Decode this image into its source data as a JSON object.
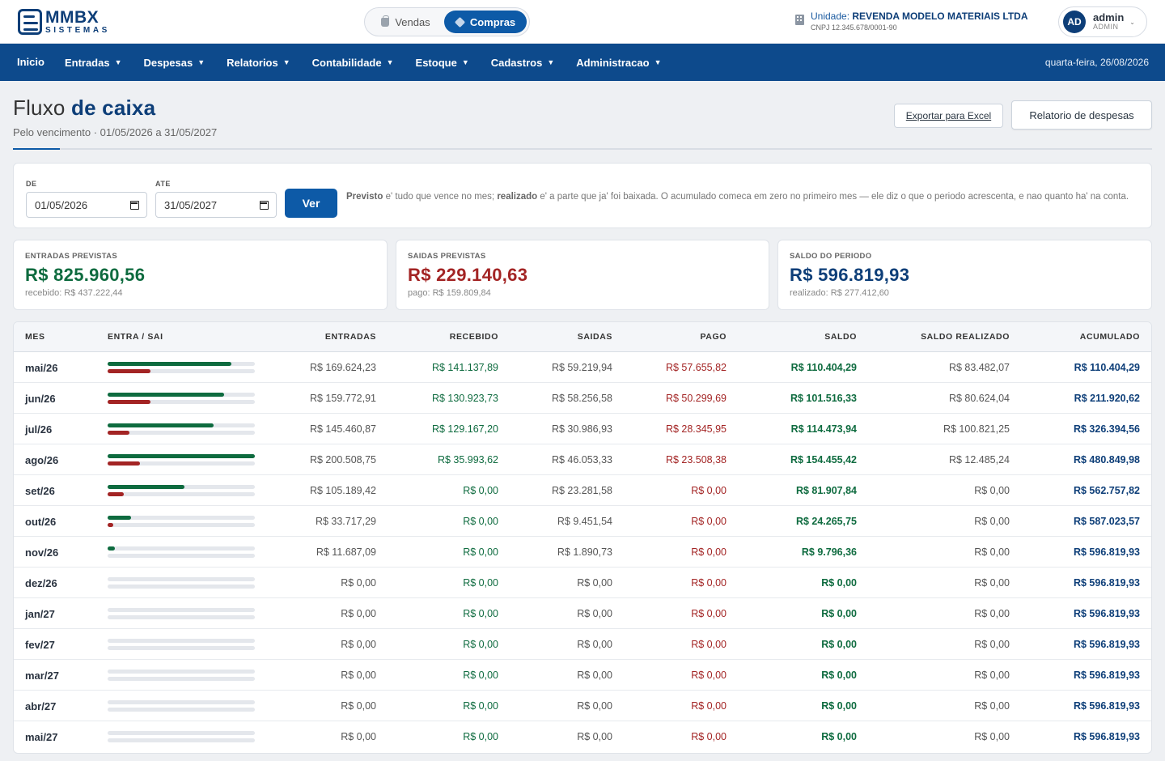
{
  "header": {
    "logo_name": "MMBX",
    "logo_sub": "SISTEMAS",
    "modules": [
      {
        "label": "Vendas",
        "active": false
      },
      {
        "label": "Compras",
        "active": true
      }
    ],
    "unit_label": "Unidade:",
    "unit_name": "REVENDA MODELO MATERIAIS LTDA",
    "unit_cnpj": "CNPJ 12.345.678/0001-90",
    "user_initials": "AD",
    "user_name": "admin",
    "user_role": "ADMIN"
  },
  "nav": {
    "items": [
      {
        "label": "Inicio",
        "dropdown": false
      },
      {
        "label": "Entradas",
        "dropdown": true
      },
      {
        "label": "Despesas",
        "dropdown": true
      },
      {
        "label": "Relatorios",
        "dropdown": true
      },
      {
        "label": "Contabilidade",
        "dropdown": true
      },
      {
        "label": "Estoque",
        "dropdown": true
      },
      {
        "label": "Cadastros",
        "dropdown": true
      },
      {
        "label": "Administracao",
        "dropdown": true
      }
    ],
    "date": "quarta-feira, 26/08/2026"
  },
  "page": {
    "title_light": "Fluxo",
    "title_strong": "de caixa",
    "subtitle": "Pelo vencimento · 01/05/2026 a 31/05/2027",
    "export_label": "Exportar para Excel",
    "report_label": "Relatorio de despesas"
  },
  "filter": {
    "from_label": "DE",
    "from_value": "01/05/2026",
    "to_label": "ATE",
    "to_value": "31/05/2027",
    "button_label": "Ver",
    "help_b1": "Previsto",
    "help_t1": " e' tudo que vence no mes; ",
    "help_b2": "realizado",
    "help_t2": " e' a parte que ja' foi baixada. O acumulado comeca em zero no primeiro mes — ele diz o que o periodo acrescenta, e nao quanto ha' na conta."
  },
  "cards": [
    {
      "label": "ENTRADAS PREVISTAS",
      "value": "R$ 825.960,56",
      "foot": "recebido: R$ 437.222,44",
      "color": "#0e6b3f"
    },
    {
      "label": "SAIDAS PREVISTAS",
      "value": "R$ 229.140,63",
      "foot": "pago: R$ 159.809,84",
      "color": "#a32424"
    },
    {
      "label": "SALDO DO PERIODO",
      "value": "R$ 596.819,93",
      "foot": "realizado: R$ 277.412,60",
      "color": "#0d3e78"
    }
  ],
  "table": {
    "columns": [
      "MES",
      "ENTRA / SAI",
      "ENTRADAS",
      "RECEBIDO",
      "SAIDAS",
      "PAGO",
      "SALDO",
      "SALDO REALIZADO",
      "ACUMULADO"
    ],
    "colors": {
      "in": "#0e6b3f",
      "out": "#a32424"
    },
    "rows": [
      {
        "mes": "mai/26",
        "in_frac": 0.84,
        "out_frac": 0.29,
        "entradas": "R$ 169.624,23",
        "recebido": "R$ 141.137,89",
        "saidas": "R$ 59.219,94",
        "pago": "R$ 57.655,82",
        "saldo": "R$ 110.404,29",
        "saldo_realizado": "R$ 83.482,07",
        "acumulado": "R$ 110.404,29"
      },
      {
        "mes": "jun/26",
        "in_frac": 0.79,
        "out_frac": 0.29,
        "entradas": "R$ 159.772,91",
        "recebido": "R$ 130.923,73",
        "saidas": "R$ 58.256,58",
        "pago": "R$ 50.299,69",
        "saldo": "R$ 101.516,33",
        "saldo_realizado": "R$ 80.624,04",
        "acumulado": "R$ 211.920,62"
      },
      {
        "mes": "jul/26",
        "in_frac": 0.72,
        "out_frac": 0.15,
        "entradas": "R$ 145.460,87",
        "recebido": "R$ 129.167,20",
        "saidas": "R$ 30.986,93",
        "pago": "R$ 28.345,95",
        "saldo": "R$ 114.473,94",
        "saldo_realizado": "R$ 100.821,25",
        "acumulado": "R$ 326.394,56"
      },
      {
        "mes": "ago/26",
        "in_frac": 1.0,
        "out_frac": 0.22,
        "entradas": "R$ 200.508,75",
        "recebido": "R$ 35.993,62",
        "saidas": "R$ 46.053,33",
        "pago": "R$ 23.508,38",
        "saldo": "R$ 154.455,42",
        "saldo_realizado": "R$ 12.485,24",
        "acumulado": "R$ 480.849,98"
      },
      {
        "mes": "set/26",
        "in_frac": 0.52,
        "out_frac": 0.11,
        "entradas": "R$ 105.189,42",
        "recebido": "R$ 0,00",
        "saidas": "R$ 23.281,58",
        "pago": "R$ 0,00",
        "saldo": "R$ 81.907,84",
        "saldo_realizado": "R$ 0,00",
        "acumulado": "R$ 562.757,82"
      },
      {
        "mes": "out/26",
        "in_frac": 0.16,
        "out_frac": 0.04,
        "entradas": "R$ 33.717,29",
        "recebido": "R$ 0,00",
        "saidas": "R$ 9.451,54",
        "pago": "R$ 0,00",
        "saldo": "R$ 24.265,75",
        "saldo_realizado": "R$ 0,00",
        "acumulado": "R$ 587.023,57"
      },
      {
        "mes": "nov/26",
        "in_frac": 0.05,
        "out_frac": 0.0,
        "entradas": "R$ 11.687,09",
        "recebido": "R$ 0,00",
        "saidas": "R$ 1.890,73",
        "pago": "R$ 0,00",
        "saldo": "R$ 9.796,36",
        "saldo_realizado": "R$ 0,00",
        "acumulado": "R$ 596.819,93"
      },
      {
        "mes": "dez/26",
        "in_frac": 0,
        "out_frac": 0,
        "entradas": "R$ 0,00",
        "recebido": "R$ 0,00",
        "saidas": "R$ 0,00",
        "pago": "R$ 0,00",
        "saldo": "R$ 0,00",
        "saldo_realizado": "R$ 0,00",
        "acumulado": "R$ 596.819,93"
      },
      {
        "mes": "jan/27",
        "in_frac": 0,
        "out_frac": 0,
        "entradas": "R$ 0,00",
        "recebido": "R$ 0,00",
        "saidas": "R$ 0,00",
        "pago": "R$ 0,00",
        "saldo": "R$ 0,00",
        "saldo_realizado": "R$ 0,00",
        "acumulado": "R$ 596.819,93"
      },
      {
        "mes": "fev/27",
        "in_frac": 0,
        "out_frac": 0,
        "entradas": "R$ 0,00",
        "recebido": "R$ 0,00",
        "saidas": "R$ 0,00",
        "pago": "R$ 0,00",
        "saldo": "R$ 0,00",
        "saldo_realizado": "R$ 0,00",
        "acumulado": "R$ 596.819,93"
      },
      {
        "mes": "mar/27",
        "in_frac": 0,
        "out_frac": 0,
        "entradas": "R$ 0,00",
        "recebido": "R$ 0,00",
        "saidas": "R$ 0,00",
        "pago": "R$ 0,00",
        "saldo": "R$ 0,00",
        "saldo_realizado": "R$ 0,00",
        "acumulado": "R$ 596.819,93"
      },
      {
        "mes": "abr/27",
        "in_frac": 0,
        "out_frac": 0,
        "entradas": "R$ 0,00",
        "recebido": "R$ 0,00",
        "saidas": "R$ 0,00",
        "pago": "R$ 0,00",
        "saldo": "R$ 0,00",
        "saldo_realizado": "R$ 0,00",
        "acumulado": "R$ 596.819,93"
      },
      {
        "mes": "mai/27",
        "in_frac": 0,
        "out_frac": 0,
        "entradas": "R$ 0,00",
        "recebido": "R$ 0,00",
        "saidas": "R$ 0,00",
        "pago": "R$ 0,00",
        "saldo": "R$ 0,00",
        "saldo_realizado": "R$ 0,00",
        "acumulado": "R$ 596.819,93"
      }
    ]
  }
}
